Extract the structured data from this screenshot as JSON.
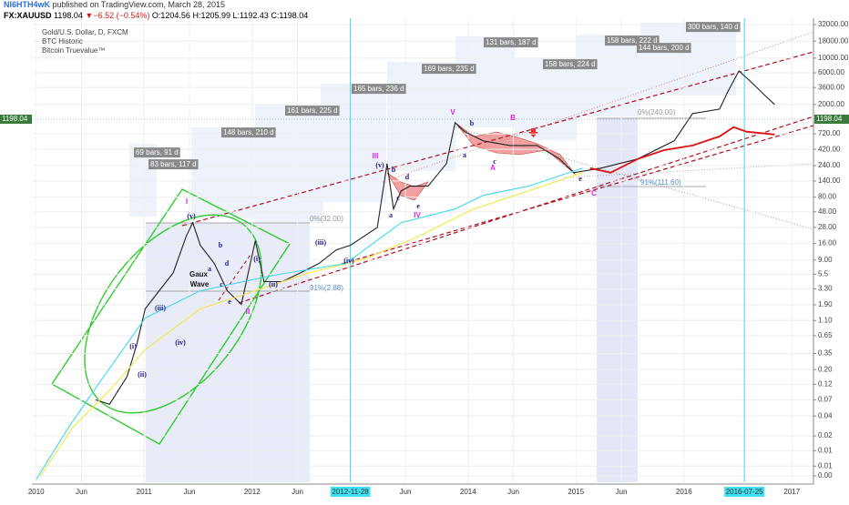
{
  "header": {
    "author": "NI6HTH4wK",
    "published": "published on TradingView.com, March 28, 2015",
    "symbol": "FX:XAUUSD",
    "last": "1198.04",
    "arrow": "▼",
    "change": "−6.52 (−0.54%)",
    "open": "O:1204.56",
    "high": "H:1205.99",
    "low": "L:1192.43",
    "close": "C:1198.04"
  },
  "chart_data": {
    "type": "line",
    "title": "Gold/U.S. Dollar, D, FXCM",
    "log_scale": true,
    "grid": true,
    "last_price": 1198.04,
    "xlim": [
      2009.96,
      2017.2
    ],
    "xticks": [
      2010,
      {
        "value": 2010.42,
        "label": "Jun"
      },
      2011,
      {
        "value": 2011.42,
        "label": "Jun"
      },
      2012,
      {
        "value": 2012.42,
        "label": "Jun"
      },
      {
        "value": 2012.91,
        "label": "2012-11-28"
      },
      {
        "value": 2013.42,
        "label": "Jun"
      },
      2014,
      {
        "value": 2014.42,
        "label": "Jun"
      },
      2015,
      {
        "value": 2015.42,
        "label": "Jun"
      },
      2016,
      {
        "value": 2016.56,
        "label": "2016-07-25"
      },
      2017
    ],
    "ylim": [
      0.004,
      40000
    ],
    "yticks": [
      {
        "value": 32000,
        "label": "32000.00"
      },
      {
        "value": 18000,
        "label": "18000.00"
      },
      {
        "value": 10000,
        "label": "10000.00"
      },
      {
        "value": 6000,
        "label": "6000.00"
      },
      {
        "value": 3600,
        "label": "3600.00"
      },
      {
        "value": 2000,
        "label": "2000.00"
      },
      {
        "value": 720,
        "label": "720.00"
      },
      {
        "value": 420,
        "label": "420.00"
      },
      {
        "value": 240,
        "label": "240.00"
      },
      {
        "value": 140,
        "label": "140.00"
      },
      {
        "value": 80,
        "label": "80.00"
      },
      {
        "value": 48,
        "label": "48.00"
      },
      {
        "value": 28,
        "label": "28.00"
      },
      {
        "value": 16,
        "label": "16.00"
      },
      {
        "value": 9,
        "label": "9.00"
      },
      5.5,
      {
        "value": 3.3,
        "label": "3.30"
      },
      {
        "value": 1.9,
        "label": "1.90"
      },
      {
        "value": 1.1,
        "label": "1.10"
      },
      0.65,
      0.35,
      {
        "value": 0.2,
        "label": "0.20"
      },
      0.12,
      0.07,
      0.04,
      0.02,
      {
        "value": 0.012,
        "label": "0.01"
      },
      {
        "value": 0.007,
        "label": "0.01"
      },
      {
        "value": 0.005,
        "label": "0.00"
      }
    ],
    "series": [
      {
        "name": "BTC Historic",
        "color": "#222222",
        "x": [
          2010.55,
          2010.68,
          2010.76,
          2010.84,
          2010.93,
          2011.01,
          2011.14,
          2011.27,
          2011.39,
          2011.45,
          2011.52,
          2011.65,
          2011.77,
          2011.9,
          2012.03,
          2012.11,
          2012.28,
          2012.45,
          2012.62,
          2012.78,
          2012.91,
          2013.04,
          2013.16,
          2013.25,
          2013.31,
          2013.38,
          2013.46,
          2013.63,
          2013.8,
          2013.88,
          2013.97,
          2014.14,
          2014.39,
          2014.64,
          2014.85,
          2014.98,
          2015.23,
          2015.57,
          2015.91,
          2016.08,
          2016.33,
          2016.41,
          2016.51,
          2016.62,
          2016.75,
          2016.84
        ],
        "values": [
          0.07,
          0.06,
          0.097,
          0.155,
          0.47,
          1.65,
          3.1,
          5.8,
          20.7,
          33,
          15,
          8,
          3.1,
          1.93,
          17.6,
          4.25,
          4.25,
          5.8,
          8,
          12.8,
          15,
          20.7,
          28,
          256,
          53,
          99,
          117,
          117,
          256,
          1062,
          776,
          564,
          481,
          481,
          300,
          187,
          219,
          300,
          564,
          1456,
          1703,
          3200,
          6400,
          4390,
          2735,
          1997
        ]
      },
      {
        "name": "Bitcoin Truevalue™",
        "color": "#f5e642",
        "x": [
          2010.04,
          2010.34,
          2010.68,
          2011.01,
          2011.52,
          2012.03,
          2012.53,
          2013.04,
          2013.55,
          2014.05,
          2014.56,
          2015.06
        ],
        "values": [
          0.005,
          0.027,
          0.097,
          0.4,
          1.65,
          3.1,
          5.8,
          9.3,
          20.7,
          53,
          99,
          187
        ]
      },
      {
        "color": "#3fd8f0",
        "x": [
          2010.0,
          2010.3,
          2010.59,
          2011.01,
          2011.52,
          2012.2,
          2012.87,
          2013.38,
          2013.88,
          2014.14,
          2014.56,
          2015.06
        ],
        "values": [
          0.0044,
          0.027,
          0.13,
          1.2,
          3.1,
          5.3,
          8,
          33,
          53,
          85,
          117,
          219
        ]
      },
      {
        "color": "#e01010",
        "x": [
          2015.13,
          2015.32,
          2015.57,
          2015.82,
          2016.08,
          2016.33,
          2016.46,
          2016.58,
          2016.84
        ],
        "values": [
          219,
          187,
          300,
          410,
          481,
          660,
          908,
          776,
          705
        ]
      }
    ],
    "wave_labels": [
      {
        "text": "I",
        "color": "#e020e0"
      },
      {
        "text": "II",
        "color": "#e020e0"
      },
      {
        "text": "III",
        "color": "#e020e0"
      },
      {
        "text": "IV",
        "color": "#e020e0"
      },
      {
        "text": "V",
        "color": "#e020e0"
      },
      {
        "text": "A",
        "color": "#e020e0"
      },
      {
        "text": "B",
        "color": "#e020e0"
      },
      {
        "text": "C",
        "color": "#e020e0"
      },
      {
        "text": "(i)",
        "color": "#1a1a90"
      },
      {
        "text": "(ii)",
        "color": "#1a1a90"
      },
      {
        "text": "(iii)",
        "color": "#1a1a90"
      },
      {
        "text": "(iv)",
        "color": "#1a1a90"
      },
      {
        "text": "(v)",
        "color": "#1a1a90"
      },
      {
        "text": "a",
        "color": "#1a1a90"
      },
      {
        "text": "b",
        "color": "#1a1a90"
      },
      {
        "text": "c",
        "color": "#1a1a90"
      },
      {
        "text": "d",
        "color": "#1a1a90"
      },
      {
        "text": "e",
        "color": "#1a1a90"
      },
      {
        "text": "(i)",
        "color": "#1a1a90"
      },
      {
        "text": "(ii)",
        "color": "#1a1a90"
      },
      {
        "text": "(iii)",
        "color": "#1a1a90"
      },
      {
        "text": "(iv)",
        "color": "#1a1a90"
      },
      {
        "text": "(v)",
        "color": "#1a1a90"
      },
      {
        "text": "b",
        "color": "#1a1a90"
      },
      {
        "text": "c",
        "color": "#1a1a90"
      },
      {
        "text": "d",
        "color": "#1a1a90"
      },
      {
        "text": "e",
        "color": "#1a1a90"
      },
      {
        "text": "a",
        "color": "#1a1a90"
      },
      {
        "text": "b",
        "color": "#1a1a90"
      },
      {
        "text": "a",
        "color": "#1a1a90"
      },
      {
        "text": "c",
        "color": "#1a1a90"
      },
      {
        "text": "e",
        "color": "#1a1a90"
      },
      {
        "text": "Gaux",
        "color": "#111111"
      },
      {
        "text": "Wave",
        "color": "#111111"
      }
    ],
    "measure_labels": [
      "69 bars, 91 d",
      "83 bars, 117 d",
      "148 bars, 210 d",
      "161 bars, 225 d",
      "165 bars, 236 d",
      "169 bars, 235 d",
      "131 bars, 187 d",
      "158 bars, 224 d",
      "158 bars, 222 d",
      "144 bars, 200 d",
      "300 bars, 140 d"
    ],
    "fib_labels": [
      {
        "text": "0%(32.00)",
        "color": "#999999"
      },
      {
        "text": "91%(2.88)",
        "color": "#5b8fd0"
      },
      {
        "text": "0%(240.00)",
        "color": "#999999"
      },
      {
        "text": "91%(111.60)",
        "color": "#5b8fd0"
      }
    ]
  }
}
